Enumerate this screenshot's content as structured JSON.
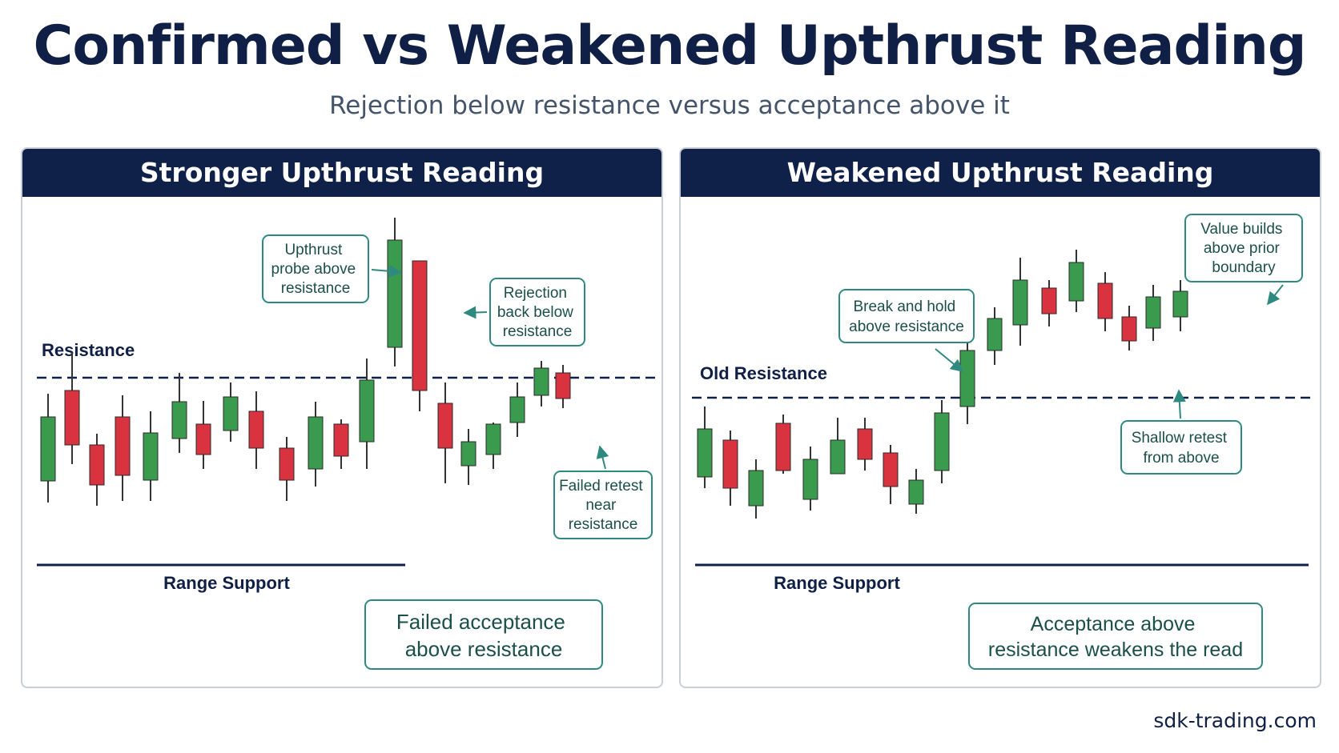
{
  "header": {
    "title": "Confirmed vs Weakened Upthrust Reading",
    "subtitle": "Rejection below resistance versus acceptance above it"
  },
  "colors": {
    "navy": "#0f2149",
    "bull": "#3a9a4e",
    "bear": "#d9333f",
    "callout_border": "#2e8a80",
    "callout_text": "#1b4f4a"
  },
  "panels": {
    "left": {
      "heading": "Stronger Upthrust Reading",
      "resistance_label": "Resistance",
      "support_label": "Range Support",
      "callouts": {
        "probe": [
          "Upthrust",
          "probe above",
          "resistance"
        ],
        "rejection": [
          "Rejection",
          "back below",
          "resistance"
        ],
        "failed_retest": [
          "Failed retest",
          "near",
          "resistance"
        ]
      },
      "summary": [
        "Failed acceptance",
        "above resistance"
      ]
    },
    "right": {
      "heading": "Weakened Upthrust Reading",
      "resistance_label": "Old Resistance",
      "support_label": "Range Support",
      "callouts": {
        "break_hold": [
          "Break and hold",
          "above resistance"
        ],
        "value_builds": [
          "Value builds",
          "above prior",
          "boundary"
        ],
        "shallow_retest": [
          "Shallow retest",
          "from above"
        ]
      },
      "summary": [
        "Acceptance above",
        "resistance weakens the read"
      ]
    }
  },
  "footer": {
    "site": "sdk-trading.com"
  }
}
